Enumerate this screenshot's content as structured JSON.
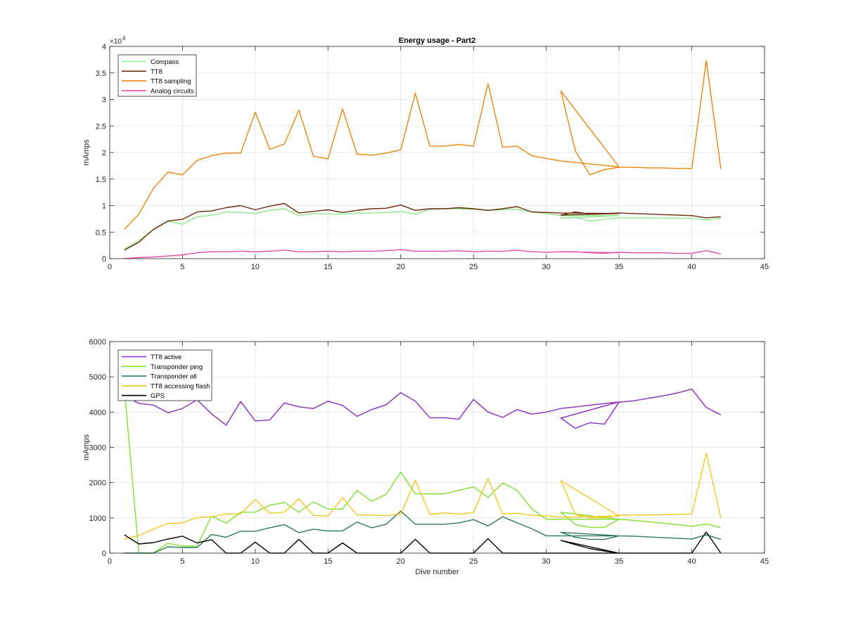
{
  "figure": {
    "title": "Energy usage - Part2"
  },
  "chart_data": [
    {
      "type": "line",
      "title": "Energy usage - Part2",
      "xlabel": "",
      "ylabel": "mAmps",
      "xlim": [
        0,
        45
      ],
      "ylim": [
        0,
        40000
      ],
      "xticks": [
        0,
        5,
        10,
        15,
        20,
        25,
        30,
        35,
        40,
        45
      ],
      "yticks": [
        0,
        5000,
        10000,
        15000,
        20000,
        25000,
        30000,
        35000,
        40000
      ],
      "ytick_labels": [
        "0",
        "0.5",
        "1",
        "1.5",
        "2",
        "2.5",
        "3",
        "3.5",
        "4"
      ],
      "y_exponent": "4",
      "grid": true,
      "legend_position": "top-left",
      "x": [
        1,
        2,
        3,
        4,
        5,
        6,
        7,
        8,
        9,
        10,
        11,
        12,
        13,
        14,
        15,
        16,
        17,
        18,
        19,
        20,
        21,
        22,
        23,
        24,
        25,
        26,
        27,
        28,
        29,
        30,
        31,
        35,
        31,
        32,
        33,
        34,
        35,
        35,
        36,
        37,
        38,
        39,
        40,
        41,
        42
      ],
      "series": [
        {
          "name": "Compass",
          "color": "#8ce88c",
          "values": [
            1800,
            3400,
            5500,
            7000,
            6500,
            7900,
            8200,
            8800,
            8700,
            8500,
            9100,
            9400,
            8100,
            8500,
            8400,
            8400,
            8600,
            8600,
            8700,
            8900,
            8400,
            9300,
            9400,
            9400,
            9300,
            9100,
            9200,
            9300,
            8800,
            8500,
            8100,
            8100,
            7600,
            7800,
            7100,
            7400,
            7700,
            7700,
            7700,
            7700,
            7600,
            7600,
            7600,
            7300,
            7600
          ]
        },
        {
          "name": "TT8",
          "color": "#6b2a0a",
          "values": [
            1600,
            3100,
            5500,
            7100,
            7400,
            8800,
            9000,
            9600,
            10000,
            9200,
            9900,
            10400,
            8600,
            8900,
            9200,
            8700,
            9100,
            9400,
            9500,
            10100,
            9100,
            9400,
            9400,
            9600,
            9400,
            9100,
            9400,
            9800,
            8800,
            8700,
            8600,
            8500,
            8200,
            8800,
            8400,
            8500,
            8600,
            8600,
            8500,
            8400,
            8300,
            8200,
            8100,
            7700,
            7900
          ]
        },
        {
          "name": "TT8 sampling",
          "color": "#e8860a",
          "values": [
            5500,
            8400,
            13200,
            16300,
            15800,
            18500,
            19400,
            19900,
            19900,
            27600,
            20600,
            21600,
            28000,
            19300,
            18800,
            28200,
            19700,
            19500,
            19900,
            20500,
            31200,
            21200,
            21200,
            21500,
            21200,
            33000,
            21000,
            21200,
            19400,
            18900,
            18400,
            17300,
            31600,
            20300,
            15800,
            16800,
            17200,
            17200,
            17200,
            17100,
            17100,
            17000,
            17000,
            37300,
            16900
          ]
        },
        {
          "name": "Analog circuits",
          "color": "#e84aa8",
          "values": [
            0,
            200,
            300,
            500,
            700,
            1100,
            1300,
            1300,
            1400,
            1300,
            1400,
            1600,
            1300,
            1300,
            1400,
            1300,
            1400,
            1400,
            1500,
            1700,
            1400,
            1400,
            1400,
            1500,
            1300,
            1400,
            1400,
            1600,
            1300,
            1200,
            1300,
            1100,
            1300,
            1300,
            1100,
            1000,
            1200,
            1200,
            1100,
            1100,
            1100,
            1000,
            1000,
            1500,
            900
          ]
        }
      ]
    },
    {
      "type": "line",
      "title": "",
      "xlabel": "Dive number",
      "ylabel": "mAmps",
      "xlim": [
        0,
        45
      ],
      "ylim": [
        0,
        6000
      ],
      "xticks": [
        0,
        5,
        10,
        15,
        20,
        25,
        30,
        35,
        40,
        45
      ],
      "yticks": [
        0,
        1000,
        2000,
        3000,
        4000,
        5000,
        6000
      ],
      "ytick_labels": [
        "0",
        "1000",
        "2000",
        "3000",
        "4000",
        "5000",
        "6000"
      ],
      "grid": true,
      "legend_position": "top-left",
      "x": [
        1,
        2,
        3,
        4,
        5,
        6,
        7,
        8,
        9,
        10,
        11,
        12,
        13,
        14,
        15,
        16,
        17,
        18,
        19,
        20,
        21,
        22,
        23,
        24,
        25,
        26,
        27,
        28,
        29,
        30,
        31,
        35,
        31,
        32,
        33,
        34,
        35,
        35,
        36,
        37,
        38,
        39,
        40,
        41,
        42
      ],
      "series": [
        {
          "name": "TT8 active",
          "color": "#8a2bc4",
          "values": [
            4450,
            4250,
            4200,
            3980,
            4100,
            4350,
            3950,
            3630,
            4300,
            3750,
            3780,
            4260,
            4150,
            4100,
            4310,
            4190,
            3880,
            4070,
            4210,
            4550,
            4310,
            3840,
            3840,
            3800,
            4360,
            4000,
            3850,
            4070,
            3940,
            4000,
            4100,
            4290,
            3830,
            3540,
            3700,
            3660,
            4280,
            4280,
            4320,
            4390,
            4460,
            4540,
            4650,
            4130,
            3920
          ]
        },
        {
          "name": "Transponder ping",
          "color": "#7ee02c",
          "values": [
            4700,
            0,
            0,
            280,
            200,
            200,
            1050,
            850,
            1160,
            1160,
            1360,
            1440,
            1160,
            1450,
            1250,
            1250,
            1780,
            1470,
            1670,
            2300,
            1680,
            1680,
            1680,
            1780,
            1880,
            1580,
            1990,
            1780,
            1260,
            960,
            960,
            960,
            1160,
            810,
            730,
            730,
            960,
            960,
            930,
            890,
            850,
            810,
            760,
            830,
            720
          ]
        },
        {
          "name": "Transponder all",
          "color": "#2d7a5a",
          "values": [
            0,
            0,
            0,
            180,
            160,
            160,
            530,
            450,
            620,
            620,
            720,
            810,
            580,
            680,
            630,
            630,
            880,
            720,
            820,
            1190,
            820,
            820,
            820,
            860,
            950,
            770,
            1030,
            860,
            690,
            490,
            490,
            490,
            590,
            450,
            390,
            390,
            490,
            490,
            480,
            460,
            440,
            420,
            400,
            520,
            390
          ]
        },
        {
          "name": "TT8 accessing flash",
          "color": "#f2c81e",
          "values": [
            400,
            500,
            680,
            840,
            860,
            1010,
            1030,
            1110,
            1110,
            1520,
            1130,
            1160,
            1540,
            1070,
            1050,
            1570,
            1080,
            1080,
            1060,
            1110,
            2070,
            1100,
            1140,
            1110,
            1150,
            2120,
            1110,
            1130,
            1070,
            1050,
            1020,
            1050,
            2060,
            1100,
            1000,
            1000,
            1080,
            1080,
            1080,
            1080,
            1090,
            1100,
            1110,
            2830,
            1000
          ]
        },
        {
          "name": "GPS",
          "color": "#000000",
          "values": [
            520,
            260,
            300,
            400,
            480,
            290,
            380,
            0,
            0,
            310,
            0,
            0,
            390,
            0,
            0,
            290,
            0,
            0,
            0,
            0,
            390,
            0,
            0,
            0,
            0,
            410,
            0,
            0,
            0,
            0,
            0,
            0,
            360,
            240,
            130,
            60,
            0,
            0,
            0,
            0,
            0,
            0,
            0,
            600,
            0
          ]
        }
      ]
    }
  ]
}
